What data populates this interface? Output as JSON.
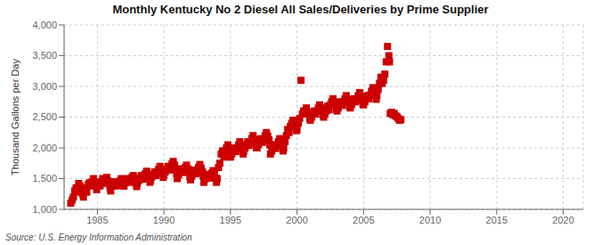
{
  "chart_data": {
    "type": "scatter",
    "title": "Monthly Kentucky No 2 Diesel All Sales/Deliveries by Prime Supplier",
    "ylabel": "Thousand Gallons per Day",
    "source": "Source: U.S. Energy Information Administration",
    "color": "#cc0000",
    "marker": "square",
    "grid": true,
    "xlim": [
      1982.5,
      2021.5
    ],
    "ylim": [
      1000,
      4000
    ],
    "xticks": [
      1985,
      1990,
      1995,
      2000,
      2005,
      2010,
      2015,
      2020
    ],
    "yticks": [
      {
        "value": 1000,
        "label": "1,000"
      },
      {
        "value": 1500,
        "label": "1,500"
      },
      {
        "value": 2000,
        "label": "2,000"
      },
      {
        "value": 2500,
        "label": "2,500"
      },
      {
        "value": 3000,
        "label": "3,000"
      },
      {
        "value": 3500,
        "label": "3,500"
      },
      {
        "value": 4000,
        "label": "4,000"
      }
    ],
    "x": [
      1983.0,
      1983.1,
      1983.2,
      1983.3,
      1983.4,
      1983.5,
      1983.6,
      1983.7,
      1983.8,
      1983.9,
      1983.95,
      1984.0,
      1984.1,
      1984.2,
      1984.3,
      1984.4,
      1984.5,
      1984.6,
      1984.7,
      1984.8,
      1984.9,
      1984.95,
      1985.0,
      1985.1,
      1985.2,
      1985.3,
      1985.4,
      1985.5,
      1985.6,
      1985.7,
      1985.8,
      1985.9,
      1985.95,
      1986.0,
      1986.1,
      1986.2,
      1986.3,
      1986.4,
      1986.5,
      1986.6,
      1986.7,
      1986.8,
      1986.9,
      1986.95,
      1987.0,
      1987.1,
      1987.2,
      1987.3,
      1987.4,
      1987.5,
      1987.6,
      1987.7,
      1987.8,
      1987.9,
      1987.95,
      1988.0,
      1988.1,
      1988.2,
      1988.3,
      1988.4,
      1988.5,
      1988.6,
      1988.7,
      1988.8,
      1988.9,
      1988.95,
      1989.0,
      1989.1,
      1989.2,
      1989.3,
      1989.4,
      1989.5,
      1989.6,
      1989.7,
      1989.8,
      1989.9,
      1989.95,
      1990.0,
      1990.1,
      1990.2,
      1990.3,
      1990.4,
      1990.5,
      1990.6,
      1990.7,
      1990.8,
      1990.9,
      1990.95,
      1991.0,
      1991.1,
      1991.2,
      1991.3,
      1991.4,
      1991.5,
      1991.6,
      1991.7,
      1991.8,
      1991.9,
      1991.95,
      1992.0,
      1992.1,
      1992.2,
      1992.3,
      1992.4,
      1992.5,
      1992.6,
      1992.7,
      1992.8,
      1992.9,
      1992.95,
      1993.0,
      1993.1,
      1993.2,
      1993.3,
      1993.4,
      1993.5,
      1993.6,
      1993.7,
      1993.8,
      1993.9,
      1993.95,
      1994.0,
      1994.1,
      1994.2,
      1994.3,
      1994.4,
      1994.5,
      1994.6,
      1994.7,
      1994.8,
      1994.9,
      1994.95,
      1995.0,
      1995.1,
      1995.2,
      1995.3,
      1995.4,
      1995.5,
      1995.6,
      1995.7,
      1995.8,
      1995.9,
      1995.95,
      1996.0,
      1996.1,
      1996.2,
      1996.3,
      1996.4,
      1996.5,
      1996.6,
      1996.7,
      1996.8,
      1996.9,
      1996.95,
      1997.0,
      1997.1,
      1997.2,
      1997.3,
      1997.4,
      1997.5,
      1997.6,
      1997.7,
      1997.8,
      1997.9,
      1997.95,
      1998.0,
      1998.1,
      1998.2,
      1998.3,
      1998.4,
      1998.5,
      1998.6,
      1998.7,
      1998.8,
      1998.9,
      1998.95,
      1999.0,
      1999.1,
      1999.2,
      1999.3,
      1999.4,
      1999.5,
      1999.6,
      1999.7,
      1999.8,
      1999.9,
      1999.95,
      2000.0,
      2000.1,
      2000.2,
      2000.3,
      2000.4,
      2000.5,
      2000.6,
      2000.7,
      2000.8,
      2000.9,
      2000.95,
      2001.0,
      2001.1,
      2001.2,
      2001.3,
      2001.4,
      2001.5,
      2001.6,
      2001.7,
      2001.8,
      2001.9,
      2001.95,
      2002.0,
      2002.1,
      2002.2,
      2002.3,
      2002.4,
      2002.5,
      2002.6,
      2002.7,
      2002.8,
      2002.9,
      2002.95,
      2003.0,
      2003.1,
      2003.2,
      2003.3,
      2003.4,
      2003.5,
      2003.6,
      2003.7,
      2003.8,
      2003.9,
      2003.95,
      2004.0,
      2004.1,
      2004.2,
      2004.3,
      2004.4,
      2004.5,
      2004.6,
      2004.7,
      2004.8,
      2004.9,
      2004.95,
      2005.0,
      2005.1,
      2005.2,
      2005.3,
      2005.4,
      2005.5,
      2005.6,
      2005.7,
      2005.8,
      2005.9,
      2005.95,
      2006.0,
      2006.1,
      2006.2,
      2006.3,
      2006.4,
      2006.5,
      2006.6,
      2006.7,
      2006.8,
      2006.9,
      2006.95,
      2007.0,
      2007.1,
      2007.2,
      2007.3,
      2007.4,
      2007.5,
      2007.6,
      2007.7,
      2007.8
    ],
    "values": [
      1100,
      1150,
      1200,
      1300,
      1350,
      1280,
      1420,
      1380,
      1300,
      1250,
      1200,
      1300,
      1350,
      1280,
      1400,
      1430,
      1380,
      1450,
      1500,
      1420,
      1380,
      1320,
      1400,
      1450,
      1380,
      1420,
      1500,
      1430,
      1480,
      1520,
      1460,
      1410,
      1350,
      1300,
      1380,
      1420,
      1450,
      1380,
      1400,
      1430,
      1460,
      1500,
      1450,
      1380,
      1380,
      1430,
      1470,
      1500,
      1440,
      1480,
      1520,
      1550,
      1480,
      1430,
      1370,
      1420,
      1470,
      1510,
      1550,
      1490,
      1530,
      1580,
      1620,
      1560,
      1510,
      1440,
      1480,
      1530,
      1570,
      1610,
      1550,
      1600,
      1650,
      1700,
      1640,
      1590,
      1520,
      1560,
      1610,
      1650,
      1700,
      1640,
      1690,
      1740,
      1780,
      1720,
      1650,
      1580,
      1500,
      1560,
      1610,
      1660,
      1600,
      1640,
      1680,
      1720,
      1660,
      1600,
      1530,
      1480,
      1540,
      1590,
      1640,
      1580,
      1630,
      1680,
      1730,
      1670,
      1610,
      1540,
      1440,
      1490,
      1530,
      1570,
      1510,
      1550,
      1590,
      1630,
      1570,
      1510,
      1440,
      1500,
      1680,
      1750,
      1900,
      1950,
      1850,
      1950,
      2000,
      2050,
      2000,
      1950,
      1850,
      1900,
      1950,
      2000,
      1940,
      2000,
      2050,
      2100,
      2040,
      1990,
      1900,
      1950,
      2000,
      2050,
      2100,
      2040,
      2090,
      2150,
      2200,
      2140,
      2080,
      2000,
      2000,
      2050,
      2100,
      2150,
      2090,
      2140,
      2200,
      2250,
      2190,
      2130,
      2050,
      1900,
      1950,
      2000,
      2050,
      1990,
      2050,
      2100,
      2150,
      2090,
      2030,
      1950,
      2000,
      2100,
      2200,
      2300,
      2250,
      2350,
      2400,
      2450,
      2400,
      2350,
      2280,
      2300,
      2400,
      2480,
      3100,
      2550,
      2600,
      2600,
      2650,
      2580,
      2550,
      2480,
      2450,
      2500,
      2550,
      2600,
      2550,
      2600,
      2650,
      2700,
      2650,
      2600,
      2530,
      2500,
      2550,
      2600,
      2680,
      2620,
      2700,
      2750,
      2800,
      2750,
      2700,
      2630,
      2600,
      2650,
      2700,
      2750,
      2690,
      2750,
      2800,
      2850,
      2790,
      2740,
      2670,
      2650,
      2700,
      2750,
      2800,
      2750,
      2800,
      2850,
      2900,
      2840,
      2780,
      2710,
      2700,
      2750,
      2800,
      2850,
      2800,
      2860,
      2920,
      2980,
      2920,
      2860,
      2790,
      2850,
      2950,
      3050,
      3150,
      3050,
      3100,
      3200,
      3400,
      3650,
      3500,
      3400,
      2560,
      2580,
      2540,
      2560,
      2520,
      2510,
      2480,
      2450,
      2460
    ]
  }
}
